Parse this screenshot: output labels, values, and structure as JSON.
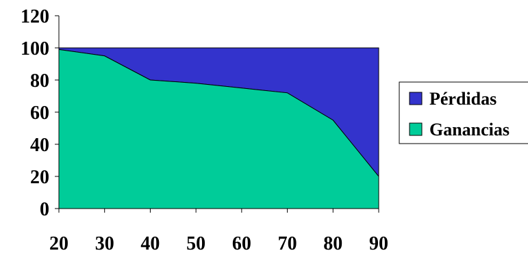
{
  "chart_data": {
    "type": "area",
    "x": [
      20,
      30,
      40,
      50,
      60,
      70,
      80,
      90
    ],
    "series": [
      {
        "name": "Pérdidas",
        "values": [
          1,
          5,
          20,
          22,
          25,
          28,
          45,
          80
        ],
        "color": "#3333cc"
      },
      {
        "name": "Ganancias",
        "values": [
          99,
          95,
          80,
          78,
          75,
          72,
          55,
          20
        ],
        "color": "#00cc99"
      }
    ],
    "stacked": true,
    "ylim": [
      0,
      120
    ],
    "yticks": [
      0,
      20,
      40,
      60,
      80,
      100,
      120
    ],
    "xticks": [
      20,
      30,
      40,
      50,
      60,
      70,
      80,
      90
    ],
    "grid": false,
    "legend_position": "right"
  }
}
